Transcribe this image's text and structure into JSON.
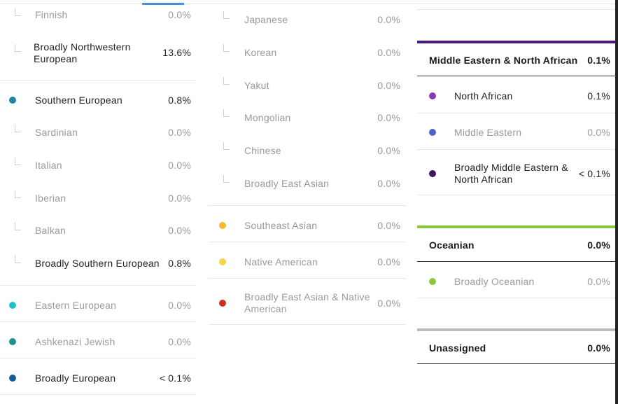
{
  "col1": {
    "finnish": {
      "label": "Finnish",
      "pct": "0.0%"
    },
    "nw_broad": {
      "label": "Broadly Northwestern European",
      "pct": "13.6%"
    },
    "southern": {
      "label": "Southern European",
      "pct": "0.8%",
      "color": "#1b84a8"
    },
    "sardinian": {
      "label": "Sardinian",
      "pct": "0.0%"
    },
    "italian": {
      "label": "Italian",
      "pct": "0.0%"
    },
    "iberian": {
      "label": "Iberian",
      "pct": "0.0%"
    },
    "balkan": {
      "label": "Balkan",
      "pct": "0.0%"
    },
    "s_broad": {
      "label": "Broadly Southern European",
      "pct": "0.8%"
    },
    "eastern": {
      "label": "Eastern European",
      "pct": "0.0%",
      "color": "#1fc1c9"
    },
    "ashkenazi": {
      "label": "Ashkenazi Jewish",
      "pct": "0.0%",
      "color": "#17928f"
    },
    "broad_eu": {
      "label": "Broadly European",
      "pct": "< 0.1%",
      "color": "#135c94"
    }
  },
  "col2": {
    "japanese": {
      "label": "Japanese",
      "pct": "0.0%"
    },
    "korean": {
      "label": "Korean",
      "pct": "0.0%"
    },
    "yakut": {
      "label": "Yakut",
      "pct": "0.0%"
    },
    "mongolian": {
      "label": "Mongolian",
      "pct": "0.0%"
    },
    "chinese": {
      "label": "Chinese",
      "pct": "0.0%"
    },
    "ea_broad": {
      "label": "Broadly East Asian",
      "pct": "0.0%"
    },
    "se_asian": {
      "label": "Southeast Asian",
      "pct": "0.0%",
      "color": "#f5b82e"
    },
    "native": {
      "label": "Native American",
      "pct": "0.0%",
      "color": "#f6d54a"
    },
    "ea_na_broad": {
      "label": "Broadly East Asian & Native American",
      "pct": "0.0%",
      "color": "#d12f1d"
    }
  },
  "col3": {
    "mena": {
      "label": "Middle Eastern & North African",
      "pct": "0.1%",
      "color": "#4a1a78"
    },
    "north_african": {
      "label": "North African",
      "pct": "0.1%",
      "color": "#8a3ab5"
    },
    "middle_eastern": {
      "label": "Middle Eastern",
      "pct": "0.0%",
      "color": "#4a63c9"
    },
    "mena_broad": {
      "label": "Broadly Middle Eastern & North African",
      "pct": "< 0.1%",
      "color": "#3f1668"
    },
    "oceanian": {
      "label": "Oceanian",
      "pct": "0.0%",
      "color": "#8cc63f"
    },
    "oceanian_broad": {
      "label": "Broadly Oceanian",
      "pct": "0.0%",
      "color": "#8cc63f"
    },
    "unassigned": {
      "label": "Unassigned",
      "pct": "0.0%",
      "color": "#bdbdbd"
    }
  }
}
